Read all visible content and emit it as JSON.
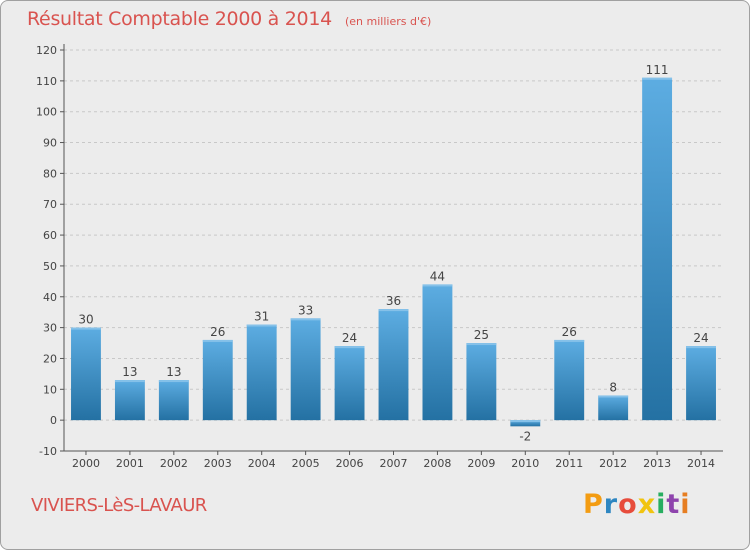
{
  "title": "Résultat Comptable 2000 à 2014",
  "subtitle": "(en milliers d'€)",
  "place_name": "VIVIERS-LèS-LAVAUR",
  "brand": {
    "text": "Proxiti",
    "letter_colors": [
      "#f39c12",
      "#2e86c1",
      "#e74c3c",
      "#f1c40f",
      "#27ae60",
      "#8e44ad",
      "#e67e22"
    ]
  },
  "colors": {
    "accent_text": "#d9534f",
    "bar_fill_top": "#5dade2",
    "bar_fill_bottom": "#2471a3",
    "background": "#ececec"
  },
  "chart_data": {
    "type": "bar",
    "categories": [
      "2000",
      "2001",
      "2002",
      "2003",
      "2004",
      "2005",
      "2006",
      "2007",
      "2008",
      "2009",
      "2010",
      "2011",
      "2012",
      "2013",
      "2014"
    ],
    "values": [
      30,
      13,
      13,
      26,
      31,
      33,
      24,
      36,
      44,
      25,
      -2,
      26,
      8,
      111,
      24
    ],
    "data_labels": [
      "30",
      "13",
      "13",
      "26",
      "31",
      "33",
      "24",
      "36",
      "44",
      "25",
      "-2",
      "26",
      "8",
      "111",
      "24"
    ],
    "y_ticks": [
      "-10",
      "0",
      "10",
      "20",
      "30",
      "40",
      "50",
      "60",
      "70",
      "80",
      "90",
      "100",
      "110",
      "120"
    ],
    "ylim": [
      -10,
      120
    ],
    "grid": true,
    "grid_style": "dashed horizontal",
    "legend": "none"
  }
}
